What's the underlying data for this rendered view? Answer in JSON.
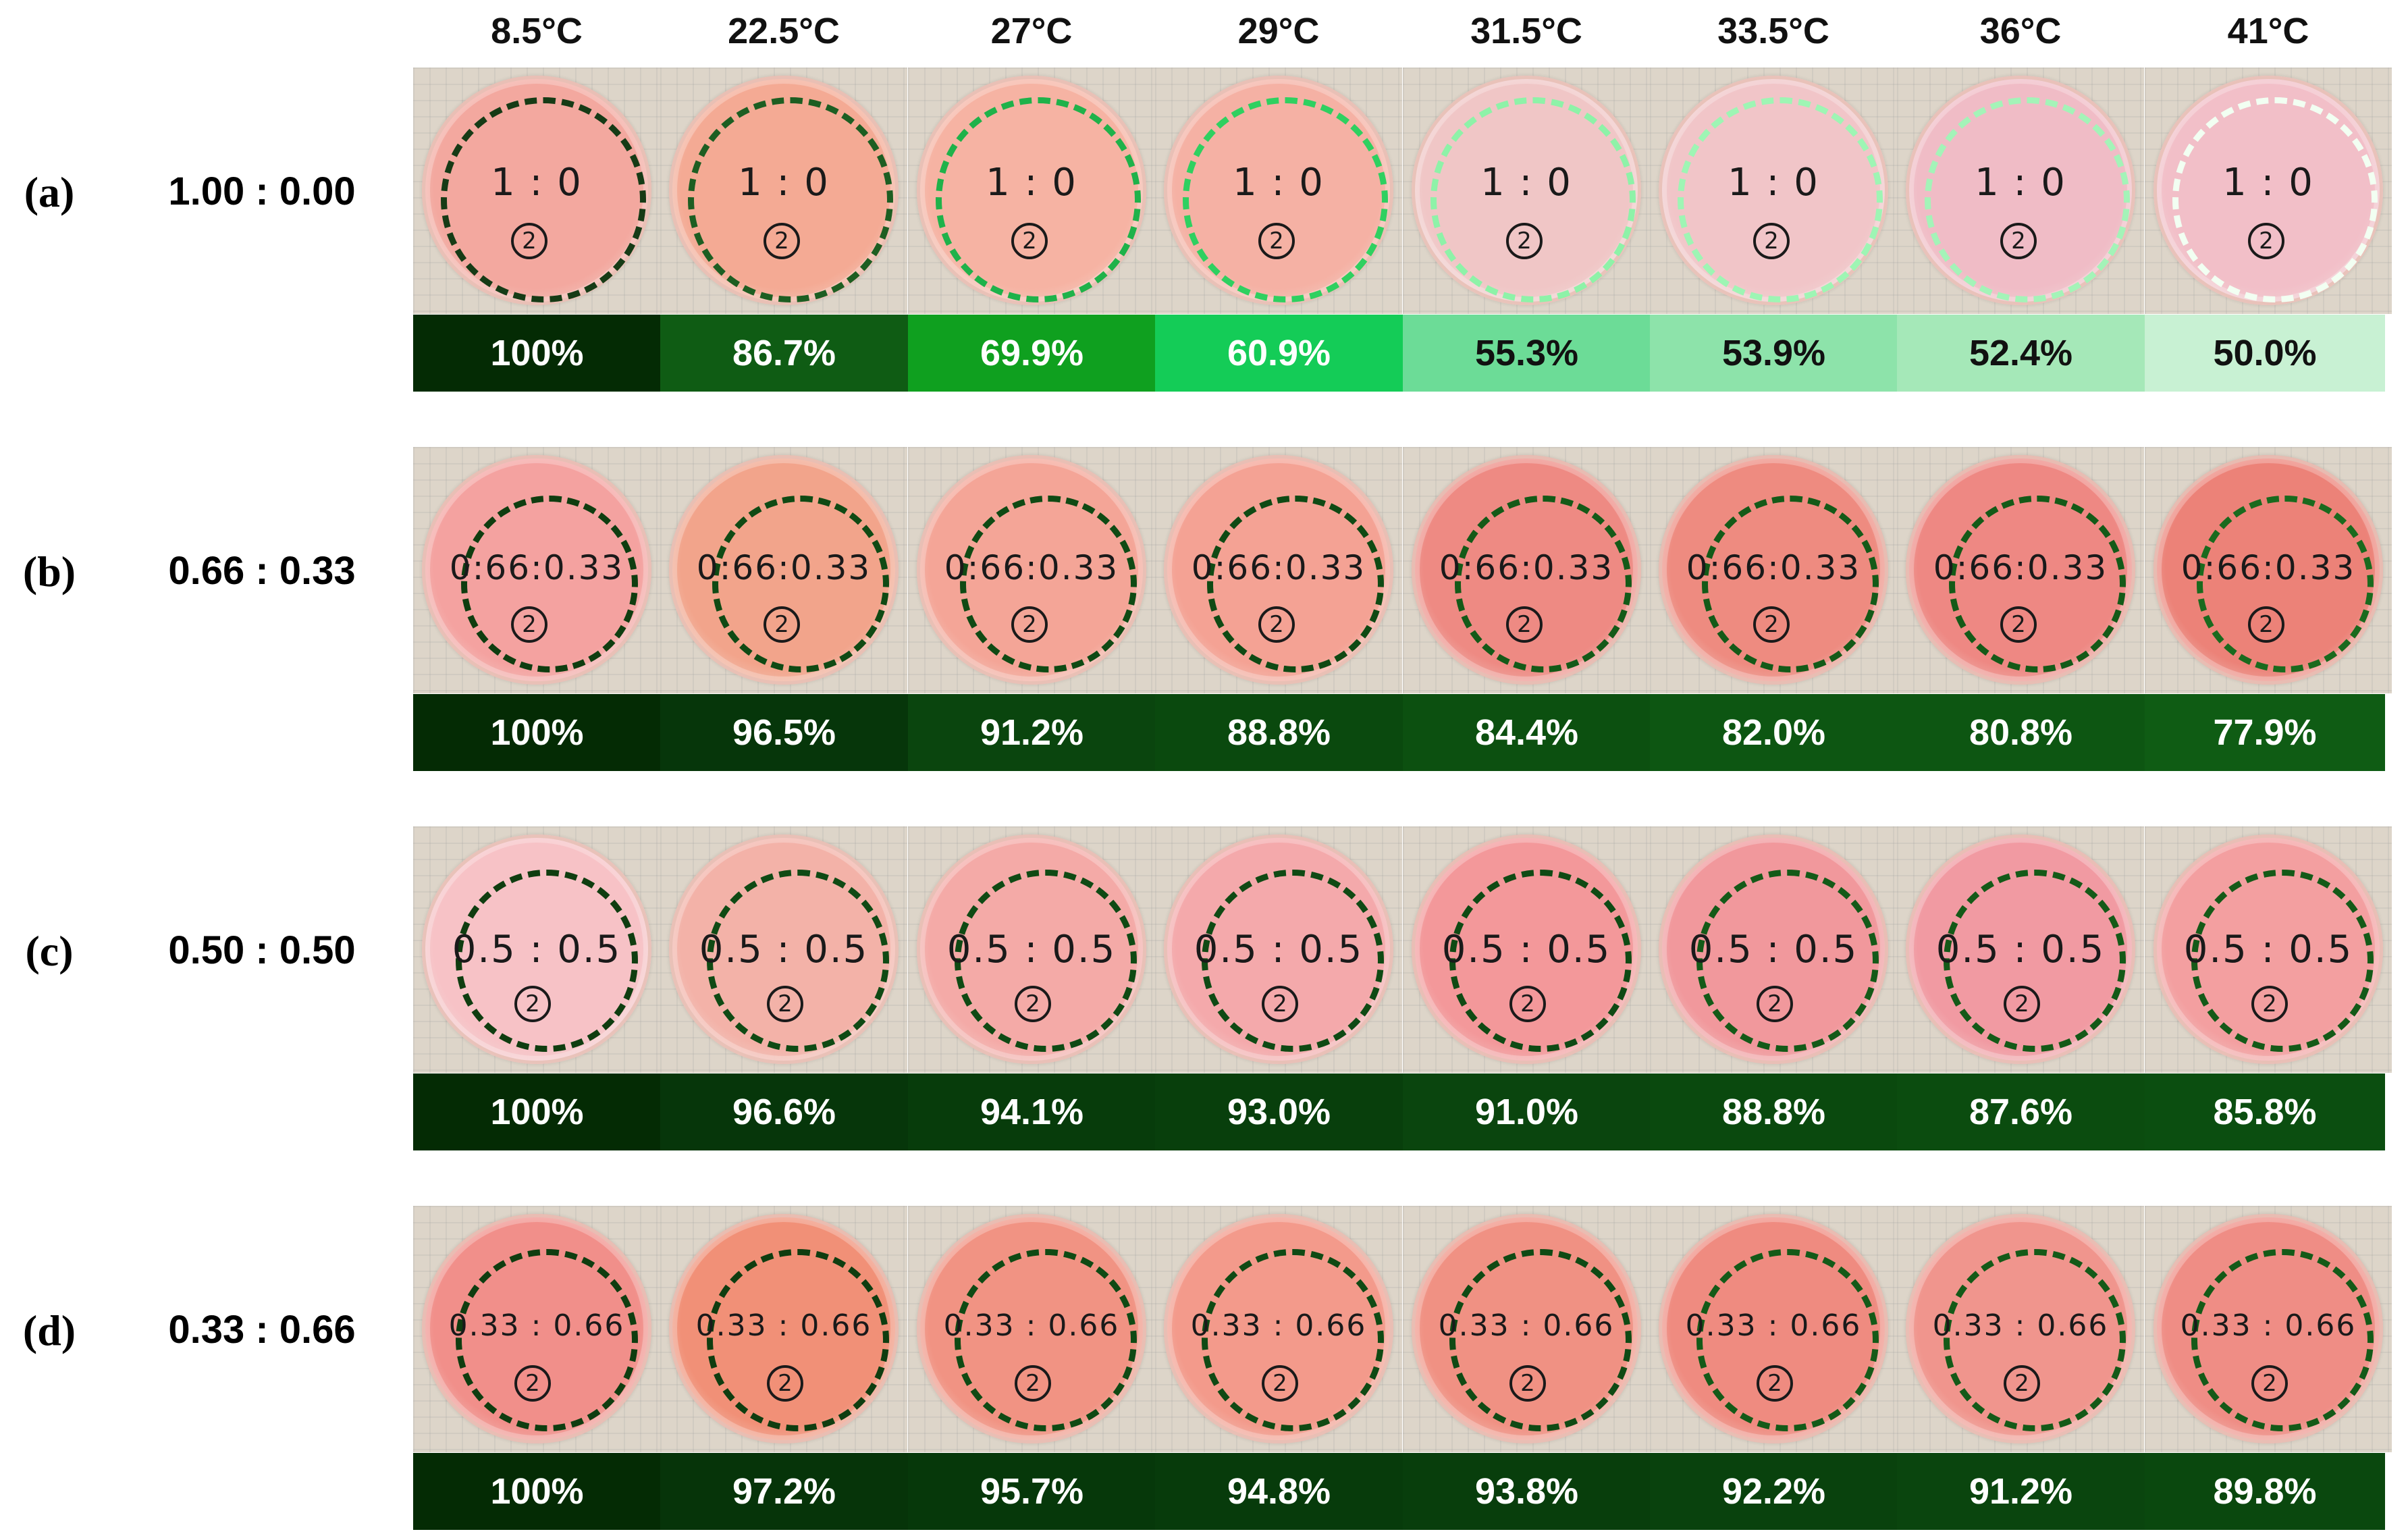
{
  "temperatures": [
    "8.5°C",
    "22.5°C",
    "27°C",
    "29°C",
    "31.5°C",
    "33.5°C",
    "36°C",
    "41°C"
  ],
  "rows": [
    {
      "letter": "(a)",
      "ratio": "1.00 : 0.00",
      "plate_label": "1 : 0",
      "plate_number": "2",
      "percentages": [
        "100%",
        "86.7%",
        "69.9%",
        "60.9%",
        "55.3%",
        "53.9%",
        "52.4%",
        "50.0%"
      ],
      "cell_colors": [
        "#042b04",
        "#0f5c14",
        "#0fa01f",
        "#14cc57",
        "#6cdc97",
        "#8de3aa",
        "#a5e8b8",
        "#c8f1d3"
      ],
      "text_colors": [
        "#ffffff",
        "#ffffff",
        "#ffffff",
        "#ffffff",
        "#111111",
        "#111111",
        "#111111",
        "#111111"
      ],
      "ring_colors": [
        "#163b16",
        "#1d5e22",
        "#1fb24a",
        "#2fd060",
        "#8ef2a8",
        "#9ef5b4",
        "#a4f3b8",
        "#f2fff2"
      ]
    },
    {
      "letter": "(b)",
      "ratio": "0.66 : 0.33",
      "plate_label": "0:66:0.33",
      "plate_number": "2",
      "percentages": [
        "100%",
        "96.5%",
        "91.2%",
        "88.8%",
        "84.4%",
        "82.0%",
        "80.8%",
        "77.9%"
      ],
      "cell_colors": [
        "#042b04",
        "#06360a",
        "#0a450e",
        "#0a490e",
        "#0c5010",
        "#0d5612",
        "#0d5612",
        "#0f5c14"
      ],
      "text_colors": [
        "#ffffff",
        "#ffffff",
        "#ffffff",
        "#ffffff",
        "#ffffff",
        "#ffffff",
        "#ffffff",
        "#ffffff"
      ],
      "ring_colors": [
        "#0f3d10",
        "#0f4a14",
        "#0f4a14",
        "#0f4a14",
        "#145a18",
        "#145a18",
        "#145a18",
        "#1a6a1e"
      ]
    },
    {
      "letter": "(c)",
      "ratio": "0.50 : 0.50",
      "plate_label": "0.5 : 0.5",
      "plate_number": "2",
      "percentages": [
        "100%",
        "96.6%",
        "94.1%",
        "93.0%",
        "91.0%",
        "88.8%",
        "87.6%",
        "85.8%"
      ],
      "cell_colors": [
        "#042b04",
        "#06360a",
        "#073c0b",
        "#083f0c",
        "#0a450e",
        "#0a490e",
        "#0b4c0f",
        "#0b4e10"
      ],
      "text_colors": [
        "#ffffff",
        "#ffffff",
        "#ffffff",
        "#ffffff",
        "#ffffff",
        "#ffffff",
        "#ffffff",
        "#ffffff"
      ],
      "ring_colors": [
        "#0f3d10",
        "#0f4a14",
        "#0f4a14",
        "#0f4a14",
        "#0f4a14",
        "#145a18",
        "#145a18",
        "#145a18"
      ]
    },
    {
      "letter": "(d)",
      "ratio": "0.33 : 0.66",
      "plate_label": "0.33 : 0.66",
      "plate_number": "2",
      "percentages": [
        "100%",
        "97.2%",
        "95.7%",
        "94.8%",
        "93.8%",
        "92.2%",
        "91.2%",
        "89.8%"
      ],
      "cell_colors": [
        "#042b04",
        "#063409",
        "#06380a",
        "#073b0b",
        "#083e0c",
        "#09420d",
        "#0a450e",
        "#0a480e"
      ],
      "text_colors": [
        "#ffffff",
        "#ffffff",
        "#ffffff",
        "#ffffff",
        "#ffffff",
        "#ffffff",
        "#ffffff",
        "#ffffff"
      ],
      "ring_colors": [
        "#0f3d10",
        "#0f3d10",
        "#0f4a14",
        "#0f4a14",
        "#0f4a14",
        "#145a18",
        "#145a18",
        "#145a18"
      ]
    }
  ],
  "plate_tints": [
    [
      "#f3a89f",
      "#f4aa94",
      "#f6b3a3",
      "#f5b1a4",
      "#f0c6c6",
      "#f1c5c8",
      "#f0bcc6",
      "#f2bfc8"
    ],
    [
      "#f4a2a0",
      "#f2a48b",
      "#f4a597",
      "#f4a294",
      "#ee8a83",
      "#ee8b80",
      "#ee8883",
      "#ec8278"
    ],
    [
      "#f7c2c6",
      "#f3b2a8",
      "#f4aaa7",
      "#f4a9ab",
      "#f3989a",
      "#f1989c",
      "#f19aa2",
      "#f39fa0"
    ],
    [
      "#f18f8a",
      "#f19077",
      "#f19383",
      "#f39a8b",
      "#f09183",
      "#ef8b80",
      "#f0958d",
      "#ef8d85"
    ]
  ]
}
